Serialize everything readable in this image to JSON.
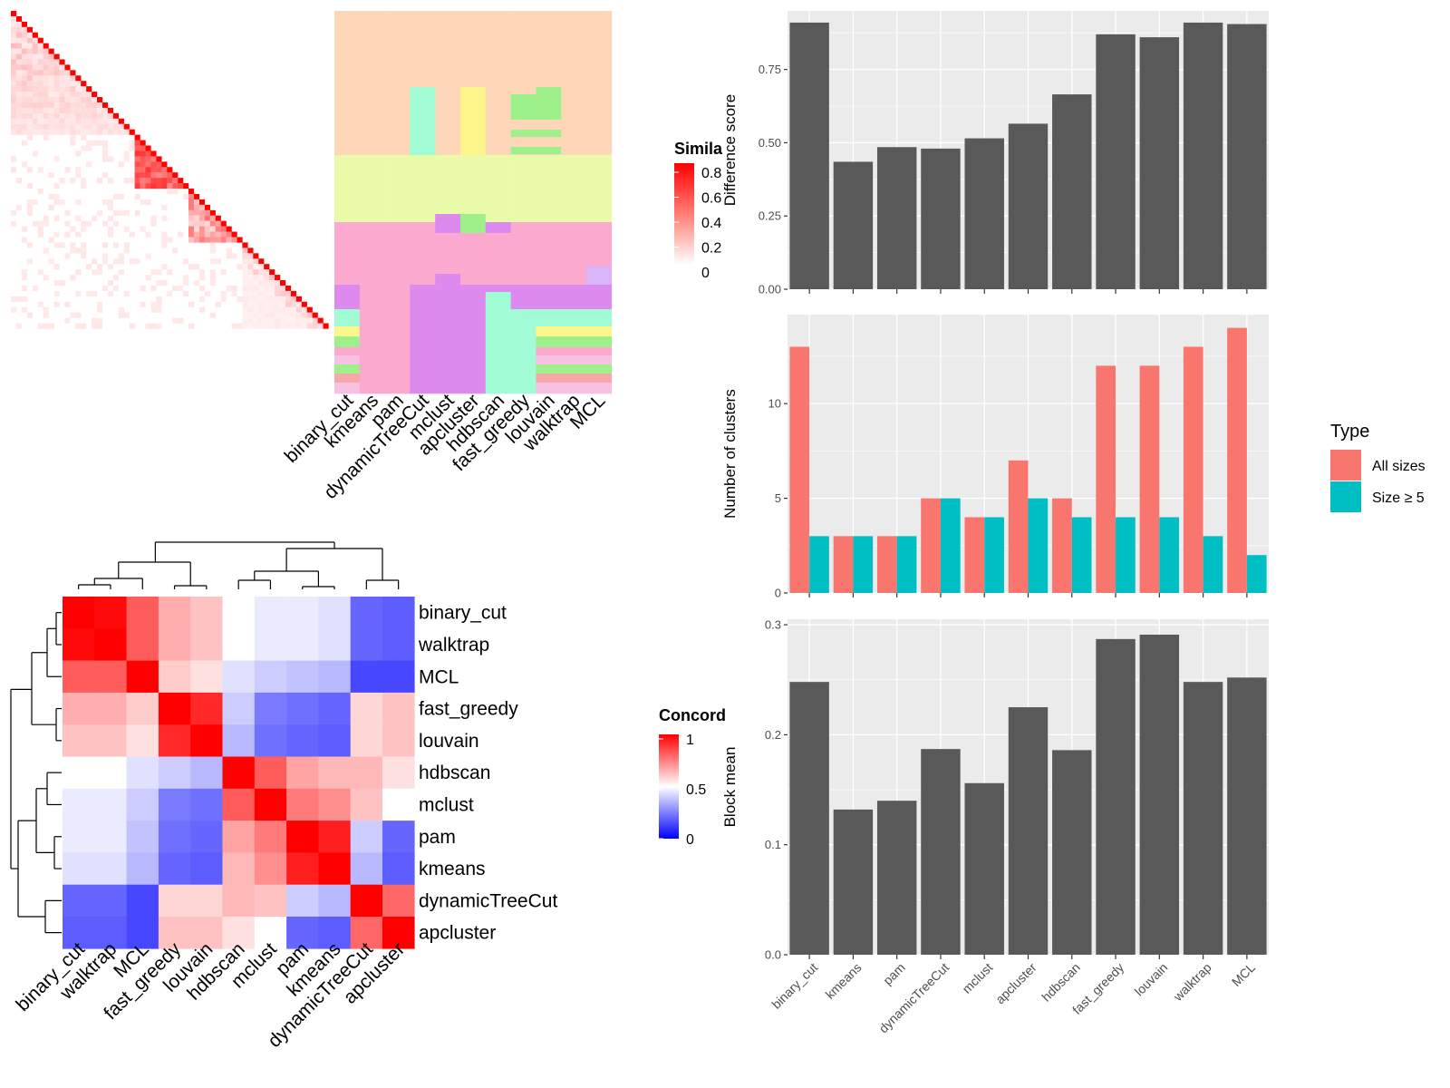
{
  "colors": {
    "panel_bg": "#ebebeb",
    "grid": "#ffffff",
    "bar_dark": "#595959",
    "all_sizes": "#f8766d",
    "size5": "#00bfc4",
    "similarity_high": "#ff0000",
    "concordance_high": "#ff0000",
    "concordance_mid": "#ffffff",
    "concordance_low": "#0000ff"
  },
  "methods": [
    "binary_cut",
    "kmeans",
    "pam",
    "dynamicTreeCut",
    "mclust",
    "apcluster",
    "hdbscan",
    "fast_greedy",
    "louvain",
    "walktrap",
    "MCL"
  ],
  "similarity_heatmap": {
    "legend_title": "Simila",
    "legend_ticks": [
      "0.8",
      "0.6",
      "0.4",
      "0.2",
      "0"
    ],
    "column_labels": [
      "binary_cut",
      "kmeans",
      "pam",
      "dynamicTreeCut",
      "mclust",
      "apcluster",
      "hdbscan",
      "fast_greedy",
      "louvain",
      "walktrap",
      "MCL"
    ]
  },
  "concordance_heatmap": {
    "legend_title": "Concord",
    "legend_ticks": [
      "1",
      "0.5",
      "0"
    ],
    "order": [
      "binary_cut",
      "walktrap",
      "MCL",
      "fast_greedy",
      "louvain",
      "hdbscan",
      "mclust",
      "pam",
      "kmeans",
      "dynamicTreeCut",
      "apcluster"
    ],
    "matrix": [
      [
        1.0,
        0.98,
        0.82,
        0.66,
        0.62,
        0.5,
        0.46,
        0.46,
        0.44,
        0.2,
        0.18
      ],
      [
        0.98,
        1.0,
        0.82,
        0.66,
        0.62,
        0.5,
        0.46,
        0.46,
        0.44,
        0.2,
        0.18
      ],
      [
        0.82,
        0.82,
        1.0,
        0.6,
        0.56,
        0.44,
        0.4,
        0.38,
        0.36,
        0.14,
        0.14
      ],
      [
        0.66,
        0.66,
        0.6,
        1.0,
        0.92,
        0.4,
        0.24,
        0.22,
        0.2,
        0.58,
        0.62
      ],
      [
        0.62,
        0.62,
        0.56,
        0.92,
        1.0,
        0.36,
        0.22,
        0.2,
        0.18,
        0.58,
        0.62
      ],
      [
        0.5,
        0.5,
        0.44,
        0.4,
        0.36,
        1.0,
        0.82,
        0.68,
        0.64,
        0.64,
        0.56
      ],
      [
        0.46,
        0.46,
        0.4,
        0.24,
        0.22,
        0.82,
        1.0,
        0.76,
        0.72,
        0.62,
        0.5
      ],
      [
        0.46,
        0.46,
        0.38,
        0.22,
        0.2,
        0.68,
        0.76,
        1.0,
        0.94,
        0.4,
        0.2
      ],
      [
        0.44,
        0.44,
        0.36,
        0.2,
        0.18,
        0.64,
        0.72,
        0.94,
        1.0,
        0.36,
        0.18
      ],
      [
        0.2,
        0.2,
        0.14,
        0.58,
        0.58,
        0.64,
        0.62,
        0.4,
        0.36,
        1.0,
        0.8
      ],
      [
        0.18,
        0.18,
        0.14,
        0.62,
        0.62,
        0.56,
        0.5,
        0.2,
        0.18,
        0.8,
        1.0
      ]
    ]
  },
  "chart_data": [
    {
      "type": "bar",
      "categories": [
        "binary_cut",
        "kmeans",
        "pam",
        "dynamicTreeCut",
        "mclust",
        "apcluster",
        "hdbscan",
        "fast_greedy",
        "louvain",
        "walktrap",
        "MCL"
      ],
      "values": [
        0.91,
        0.435,
        0.485,
        0.48,
        0.515,
        0.565,
        0.665,
        0.87,
        0.86,
        0.91,
        0.905
      ],
      "ylabel": "Difference score",
      "ylim": [
        0,
        0.95
      ],
      "yticks": [
        "0.00",
        "0.25",
        "0.50",
        "0.75"
      ],
      "grid": true
    },
    {
      "type": "bar",
      "categories": [
        "binary_cut",
        "kmeans",
        "pam",
        "dynamicTreeCut",
        "mclust",
        "apcluster",
        "hdbscan",
        "fast_greedy",
        "louvain",
        "walktrap",
        "MCL"
      ],
      "series": [
        {
          "name": "All sizes",
          "values": [
            13,
            3,
            3,
            5,
            4,
            7,
            5,
            12,
            12,
            13,
            14
          ]
        },
        {
          "name": "Size ≥ 5",
          "values": [
            3,
            3,
            3,
            5,
            4,
            5,
            4,
            4,
            4,
            3,
            2
          ]
        }
      ],
      "ylabel": "Number of clusters",
      "ylim": [
        0,
        14.7
      ],
      "yticks": [
        "0",
        "5",
        "10"
      ],
      "legend_title": "Type",
      "legend_position": "right",
      "grid": true
    },
    {
      "type": "bar",
      "categories": [
        "binary_cut",
        "kmeans",
        "pam",
        "dynamicTreeCut",
        "mclust",
        "apcluster",
        "hdbscan",
        "fast_greedy",
        "louvain",
        "walktrap",
        "MCL"
      ],
      "values": [
        0.248,
        0.132,
        0.14,
        0.187,
        0.156,
        0.225,
        0.186,
        0.287,
        0.291,
        0.248,
        0.252
      ],
      "ylabel": "Block mean",
      "ylim": [
        0,
        0.305
      ],
      "yticks": [
        "0.0",
        "0.1",
        "0.2",
        "0.3"
      ],
      "grid": true
    }
  ]
}
